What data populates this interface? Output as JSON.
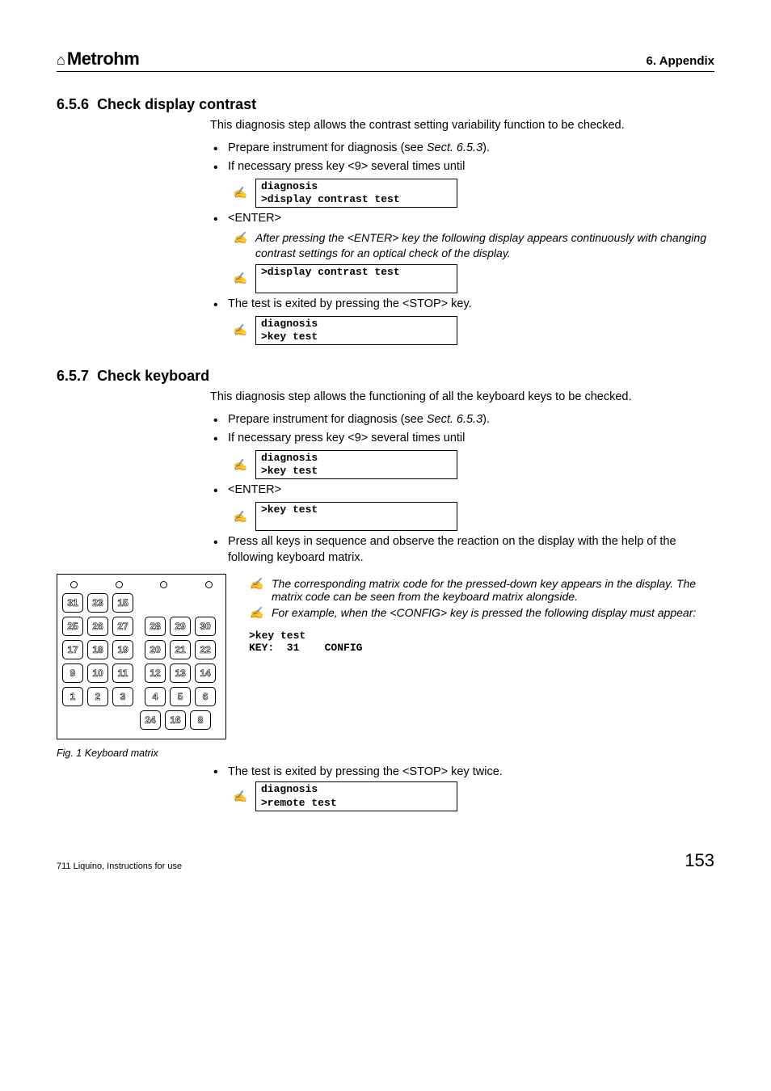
{
  "header": {
    "brand_icon": "⌂",
    "brand_name": "Metrohm",
    "appendix": "6. Appendix"
  },
  "sect656": {
    "number": "6.5.6",
    "title": "Check display contrast",
    "intro": "This diagnosis step allows the contrast setting variability function to be checked.",
    "b1_pre": "Prepare instrument for diagnosis (see ",
    "b1_ref": "Sect. 6.5.3",
    "b1_post": ").",
    "b2": "If necessary press key <9> several times until",
    "disp1_l1": "diagnosis",
    "disp1_l2": ">display contrast test",
    "b3": "<ENTER>",
    "note1": "After pressing the <ENTER> key the following display appears continuously with changing contrast settings for an optical check of the display.",
    "disp2_l1": ">display contrast test",
    "disp2_l2": " ",
    "b4": "The test is exited by pressing the <STOP> key.",
    "disp3_l1": "diagnosis",
    "disp3_l2": ">key test"
  },
  "sect657": {
    "number": "6.5.7",
    "title": "Check keyboard",
    "intro": "This diagnosis step allows the functioning of all the keyboard keys to be checked.",
    "b1_pre": "Prepare instrument for diagnosis (see ",
    "b1_ref": "Sect. 6.5.3",
    "b1_post": ").",
    "b2": "If necessary press key <9> several times until",
    "disp1_l1": "diagnosis",
    "disp1_l2": ">key test",
    "b3": "<ENTER>",
    "disp2_l1": ">key test",
    "disp2_l2": " ",
    "b4": "Press all keys in sequence and observe the reaction on the display with the help of the following keyboard matrix.",
    "note_matrix": "The corresponding matrix code for the pressed-down key appears in the display. The matrix code can be seen from the keyboard matrix alongside.",
    "note_example": "For example, when the <CONFIG> key is pressed the following display must appear:",
    "mono1": ">key test",
    "mono2": "KEY:  31    CONFIG",
    "fig_caption": "Fig. 1      Keyboard matrix",
    "b5": "The test is exited by pressing the <STOP> key twice.",
    "disp3_l1": "diagnosis",
    "disp3_l2": ">remote test"
  },
  "keyboard": {
    "rows": [
      [
        "31",
        "23",
        "15"
      ],
      [
        "25",
        "26",
        "27",
        "28",
        "29",
        "30"
      ],
      [
        "17",
        "18",
        "19",
        "20",
        "21",
        "22"
      ],
      [
        "9",
        "10",
        "11",
        "12",
        "13",
        "14"
      ],
      [
        "1",
        "2",
        "3",
        "4",
        "5",
        "6"
      ],
      [
        "24",
        "16",
        "8"
      ]
    ]
  },
  "footer": {
    "doc": "711 Liquino, Instructions for use",
    "page": "153"
  }
}
